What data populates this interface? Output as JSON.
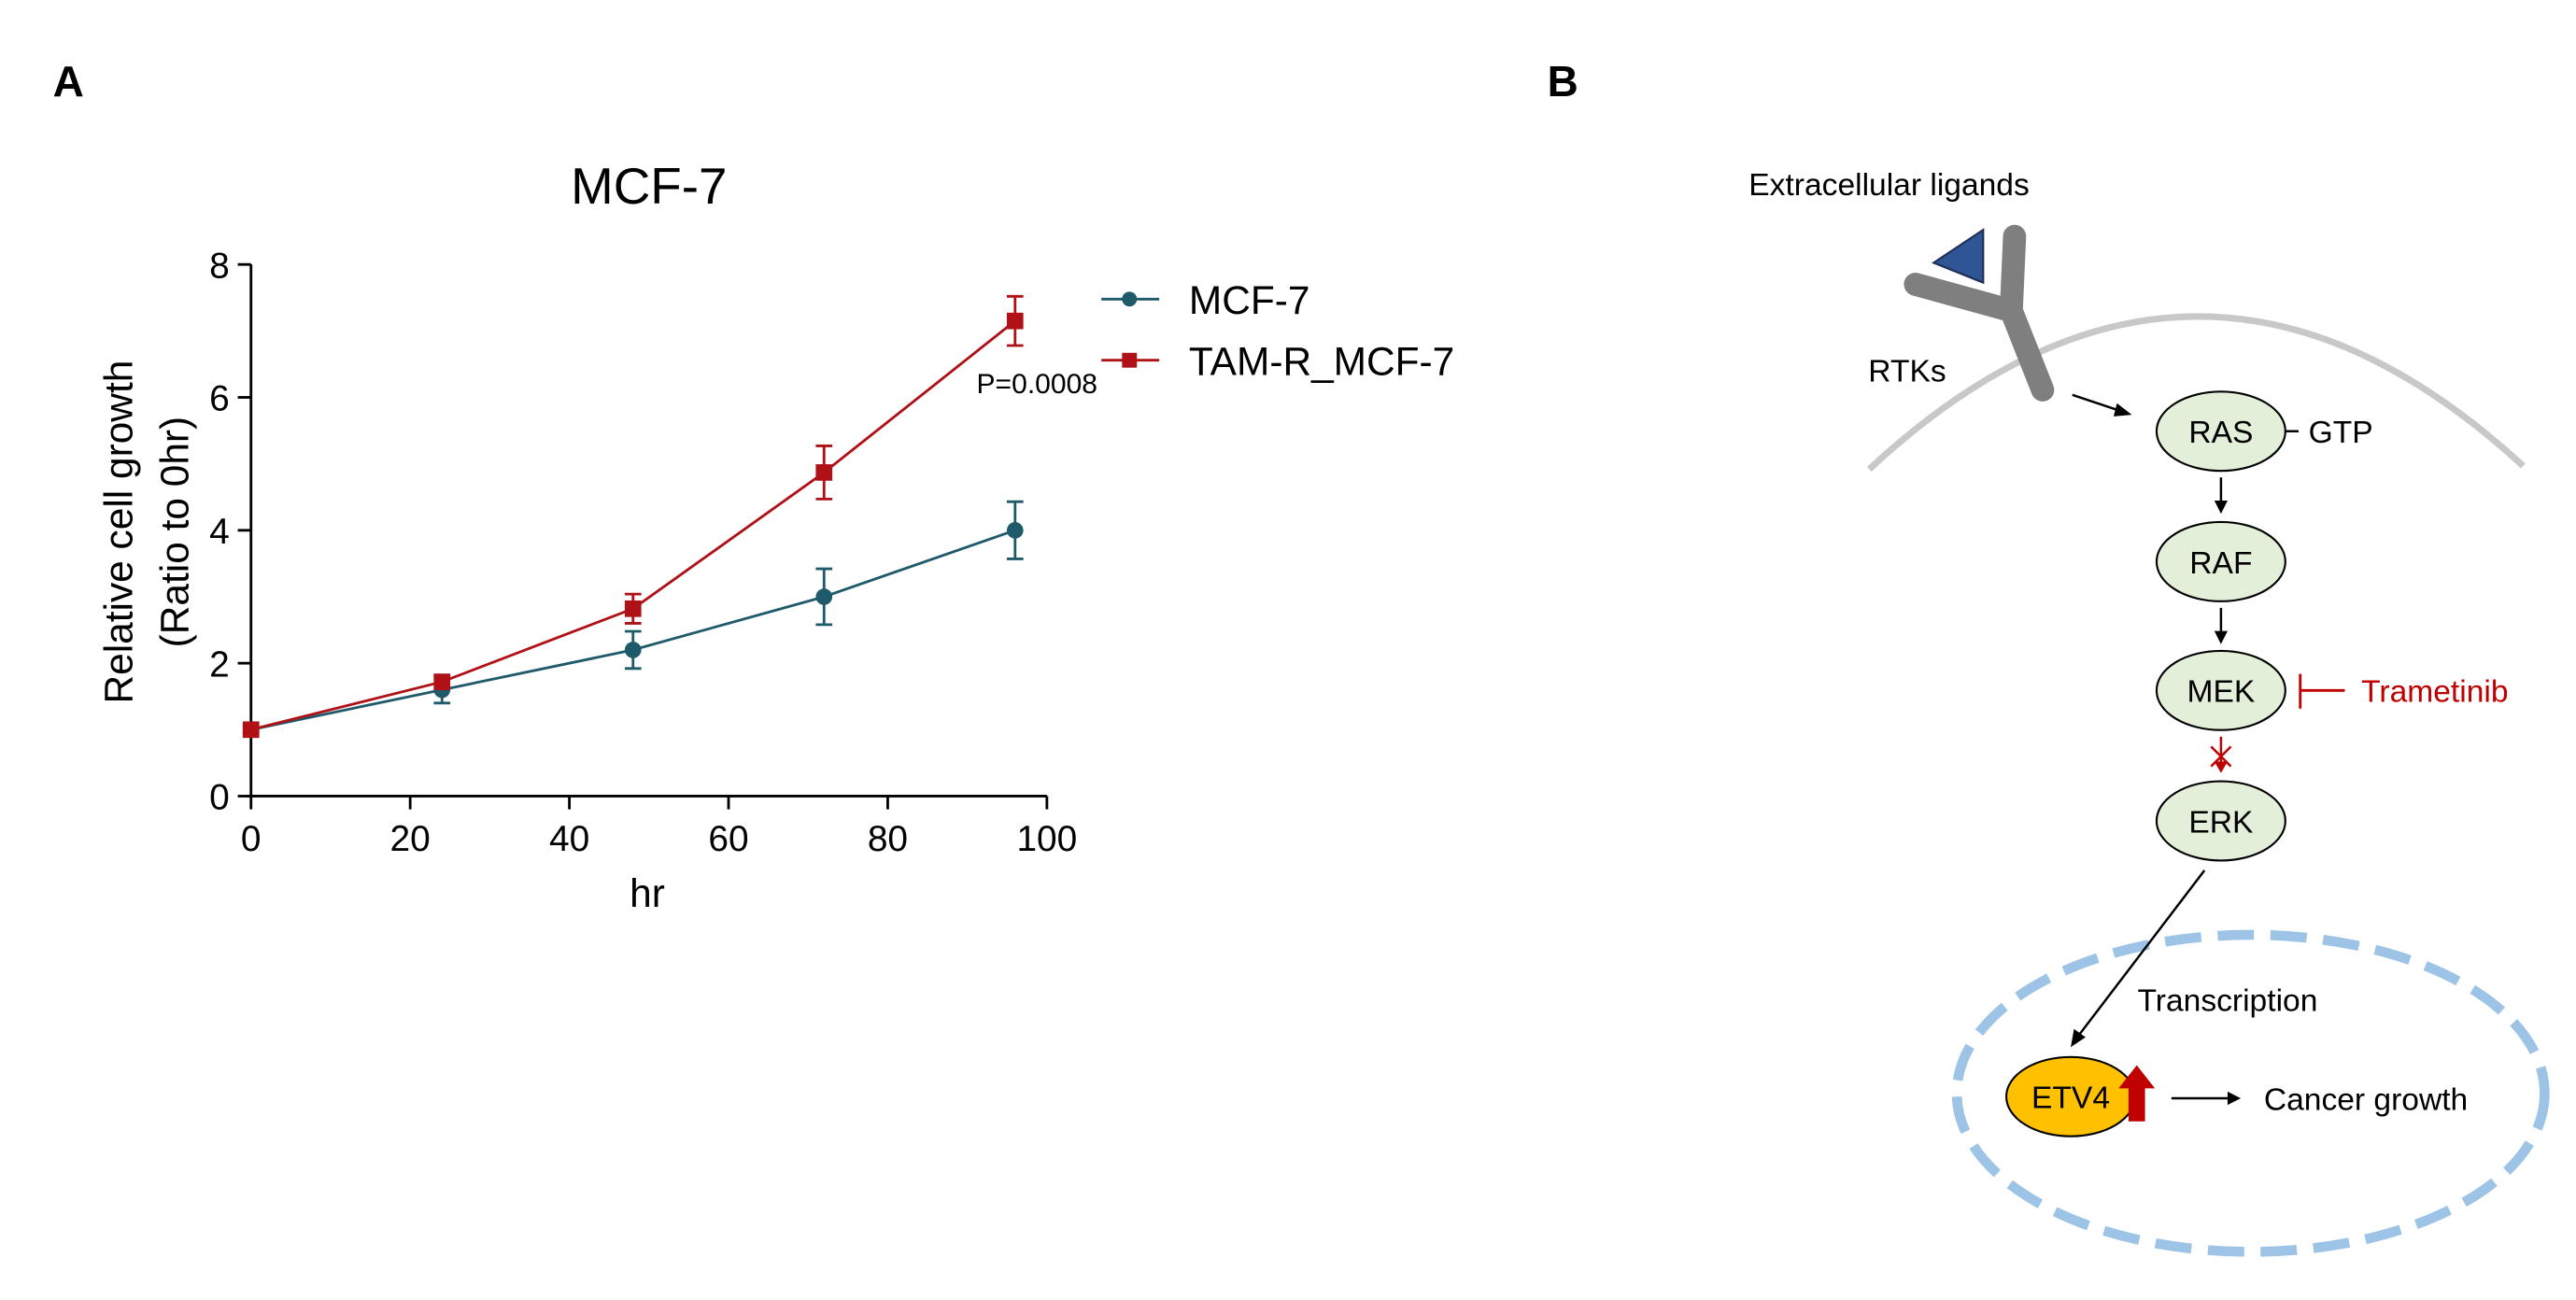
{
  "panels": {
    "a_label": "A",
    "b_label": "B"
  },
  "chart_data": {
    "type": "line",
    "title": "MCF-7",
    "xlabel": "hr",
    "ylabel_line1": "Relative cell growth",
    "ylabel_line2": "(Ratio to 0hr)",
    "xlim": [
      0,
      100
    ],
    "ylim": [
      0,
      8
    ],
    "xticks": [
      0,
      20,
      40,
      60,
      80,
      100
    ],
    "yticks": [
      0,
      2,
      4,
      6,
      8
    ],
    "grid": false,
    "legend_position": "top-right outside",
    "annotation": "P=0.0008",
    "series": [
      {
        "name": "MCF-7",
        "color": "#1f5a6b",
        "marker": "circle",
        "x": [
          0,
          24,
          48,
          72,
          96
        ],
        "y": [
          1.0,
          1.6,
          2.2,
          3.0,
          4.0
        ],
        "err": [
          0.05,
          0.2,
          0.28,
          0.42,
          0.43
        ]
      },
      {
        "name": "TAM-R_MCF-7",
        "color": "#b01116",
        "marker": "square",
        "x": [
          0,
          24,
          48,
          72,
          96
        ],
        "y": [
          1.0,
          1.72,
          2.82,
          4.87,
          7.15
        ],
        "err": [
          0.05,
          0.1,
          0.22,
          0.4,
          0.37
        ]
      }
    ]
  },
  "pathway": {
    "ligands_label": "Extracellular ligands",
    "rtks_label": "RTKs",
    "ras": "RAS",
    "gtp": "GTP",
    "raf": "RAF",
    "mek": "MEK",
    "erk": "ERK",
    "inhibitor": "Trametinib",
    "transcription": "Transcription",
    "etv4": "ETV4",
    "outcome": "Cancer growth",
    "colors": {
      "node_fill": "#e3efd9",
      "etv4_fill": "#ffc000",
      "inhibit": "#c00000",
      "receptor": "#7f7f7f",
      "ligand": "#2f5597",
      "membrane": "#c8c8c8",
      "nucleus": "#9dc3e6"
    }
  }
}
